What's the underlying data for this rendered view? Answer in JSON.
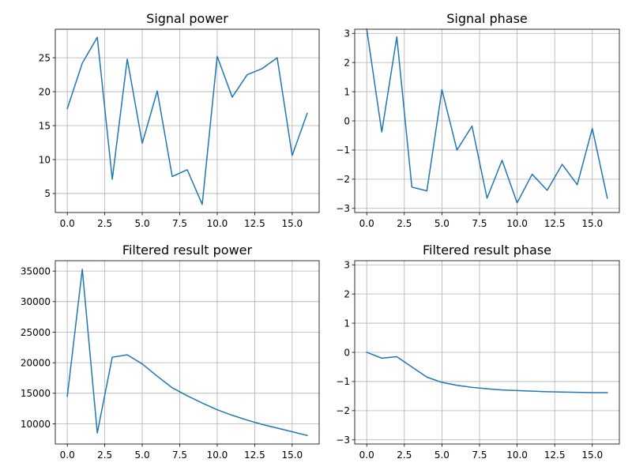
{
  "chart_data": [
    {
      "type": "line",
      "title": "Signal power",
      "xlim": [
        -0.8,
        16.8
      ],
      "ylim": [
        2.2,
        29.2
      ],
      "xticks": [
        0,
        2.5,
        5,
        7.5,
        10,
        12.5,
        15
      ],
      "xtick_labels": [
        "0.0",
        "2.5",
        "5.0",
        "7.5",
        "10.0",
        "12.5",
        "15.0"
      ],
      "yticks": [
        5,
        10,
        15,
        20,
        25
      ],
      "ytick_labels": [
        "5",
        "10",
        "15",
        "20",
        "25"
      ],
      "grid": true,
      "x": [
        0,
        1,
        2,
        3,
        4,
        5,
        6,
        7,
        8,
        9,
        10,
        11,
        12,
        13,
        14,
        15,
        16
      ],
      "y": [
        17.5,
        24.2,
        28.0,
        7.1,
        24.8,
        12.4,
        20.1,
        7.5,
        8.5,
        3.4,
        25.2,
        19.2,
        22.5,
        23.4,
        25.0,
        10.6,
        16.8
      ],
      "color": "#1f77b4"
    },
    {
      "type": "line",
      "title": "Signal phase",
      "xlim": [
        -0.8,
        16.8
      ],
      "ylim": [
        -3.14159,
        3.14159
      ],
      "xticks": [
        0,
        2.5,
        5,
        7.5,
        10,
        12.5,
        15
      ],
      "xtick_labels": [
        "0.0",
        "2.5",
        "5.0",
        "7.5",
        "10.0",
        "12.5",
        "15.0"
      ],
      "yticks": [
        -3,
        -2,
        -1,
        0,
        1,
        2,
        3
      ],
      "ytick_labels": [
        "−3",
        "−2",
        "−1",
        "0",
        "1",
        "2",
        "3"
      ],
      "grid": true,
      "x": [
        0,
        1,
        2,
        3,
        4,
        5,
        6,
        7,
        8,
        9,
        10,
        11,
        12,
        13,
        14,
        15,
        16
      ],
      "y": [
        3.14,
        -0.38,
        2.88,
        -2.27,
        -2.4,
        1.07,
        -1.0,
        -0.18,
        -2.65,
        -1.35,
        -2.81,
        -1.83,
        -2.38,
        -1.49,
        -2.19,
        -0.26,
        -2.65
      ],
      "color": "#1f77b4"
    },
    {
      "type": "line",
      "title": "Filtered result power",
      "xlim": [
        -0.8,
        16.8
      ],
      "ylim": [
        6700,
        36700
      ],
      "xticks": [
        0,
        2.5,
        5,
        7.5,
        10,
        12.5,
        15
      ],
      "xtick_labels": [
        "0.0",
        "2.5",
        "5.0",
        "7.5",
        "10.0",
        "12.5",
        "15.0"
      ],
      "yticks": [
        10000,
        15000,
        20000,
        25000,
        30000,
        35000
      ],
      "ytick_labels": [
        "10000",
        "15000",
        "20000",
        "25000",
        "30000",
        "35000"
      ],
      "grid": true,
      "x": [
        0,
        1,
        2,
        3,
        4,
        5,
        6,
        7,
        8,
        9,
        10,
        11,
        12,
        13,
        14,
        15,
        16
      ],
      "y": [
        14500,
        35300,
        8500,
        20900,
        21300,
        19800,
        17800,
        15900,
        14600,
        13400,
        12300,
        11400,
        10600,
        9900,
        9300,
        8700,
        8100
      ],
      "color": "#1f77b4"
    },
    {
      "type": "line",
      "title": "Filtered result phase",
      "xlim": [
        -0.8,
        16.8
      ],
      "ylim": [
        -3.14159,
        3.14159
      ],
      "xticks": [
        0,
        2.5,
        5,
        7.5,
        10,
        12.5,
        15
      ],
      "xtick_labels": [
        "0.0",
        "2.5",
        "5.0",
        "7.5",
        "10.0",
        "12.5",
        "15.0"
      ],
      "yticks": [
        -3,
        -2,
        -1,
        0,
        1,
        2,
        3
      ],
      "ytick_labels": [
        "−3",
        "−2",
        "−1",
        "0",
        "1",
        "2",
        "3"
      ],
      "grid": true,
      "x": [
        0,
        1,
        2,
        3,
        4,
        5,
        6,
        7,
        8,
        9,
        10,
        11,
        12,
        13,
        14,
        15,
        16
      ],
      "y": [
        0.0,
        -0.2,
        -0.15,
        -0.5,
        -0.85,
        -1.03,
        -1.13,
        -1.2,
        -1.25,
        -1.29,
        -1.31,
        -1.33,
        -1.35,
        -1.36,
        -1.37,
        -1.38,
        -1.38
      ],
      "color": "#1f77b4"
    }
  ]
}
